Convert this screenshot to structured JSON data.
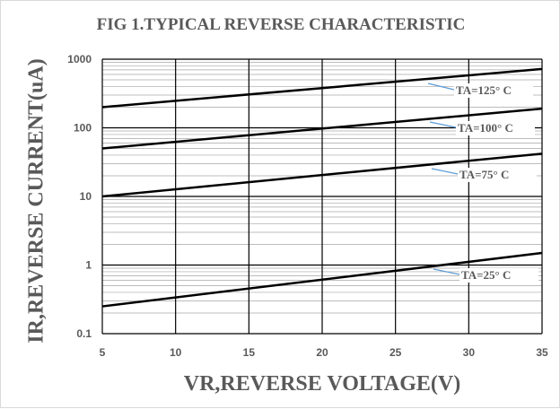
{
  "chart_data": {
    "type": "line",
    "title": "FIG 1.TYPICAL REVERSE CHARACTERISTIC",
    "xlabel": "VR,REVERSE  VOLTAGE(V)",
    "ylabel": "IR,REVERSE  CURRENT(uA)",
    "xlim": [
      5,
      35
    ],
    "ylim": [
      0.1,
      1000
    ],
    "y_scale": "log",
    "x_ticks": [
      5,
      10,
      15,
      20,
      25,
      30,
      35
    ],
    "y_ticks": [
      0.1,
      1,
      10,
      100,
      1000
    ],
    "x_tick_labels": [
      "5",
      "10",
      "15",
      "20",
      "25",
      "30",
      "35"
    ],
    "y_tick_labels": [
      "0.1",
      "1",
      "10",
      "100",
      "1000"
    ],
    "grid": true,
    "series": [
      {
        "name": "TA=125° C",
        "x": [
          5,
          35
        ],
        "y": [
          200,
          720
        ],
        "color": "#000000"
      },
      {
        "name": "TA=100° C",
        "x": [
          5,
          35
        ],
        "y": [
          50,
          190
        ],
        "color": "#000000"
      },
      {
        "name": "TA=75° C",
        "x": [
          5,
          35
        ],
        "y": [
          10,
          42
        ],
        "color": "#000000"
      },
      {
        "name": "TA=25° C",
        "x": [
          5,
          35
        ],
        "y": [
          0.25,
          1.5
        ],
        "color": "#000000"
      }
    ],
    "label_leader_color": "#5b9bd5"
  }
}
